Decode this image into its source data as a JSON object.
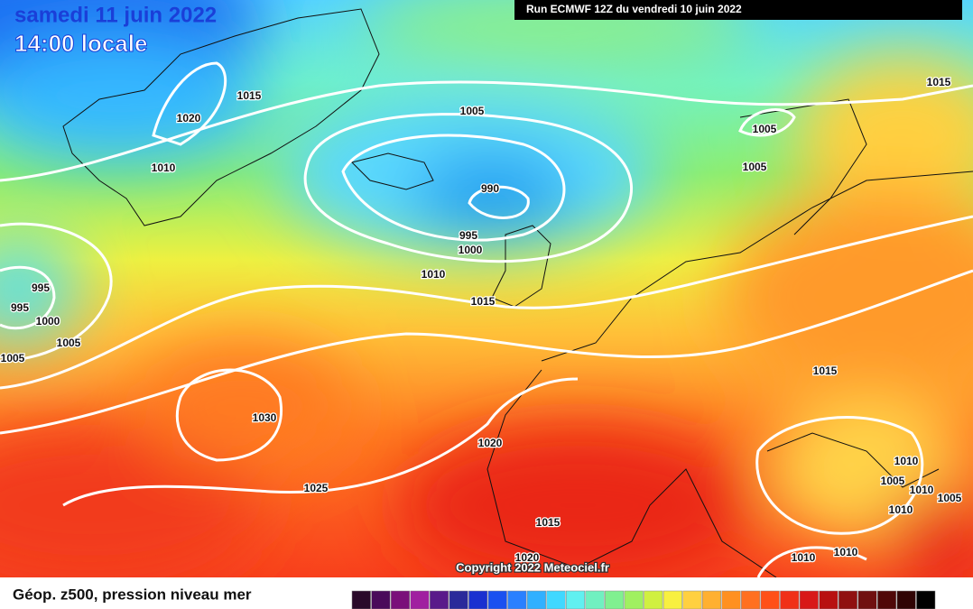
{
  "header": {
    "date": "samedi 11 juin 2022",
    "time": "14:00 locale",
    "run": "Run ECMWF 12Z du vendredi 10 juin 2022"
  },
  "isobar_labels": [
    "1015",
    "1020",
    "1010",
    "1005",
    "990",
    "995",
    "1000",
    "1010",
    "1015",
    "995",
    "995",
    "1000",
    "1005",
    "1005",
    "1030",
    "1025",
    "1020",
    "1015",
    "1020",
    "1005",
    "1005",
    "1015",
    "1015",
    "1010",
    "1005",
    "1010",
    "1005",
    "1010",
    "1010",
    "1010"
  ],
  "copyright": "Copyright 2022 Meteociel.fr",
  "legend": {
    "title": "Géop. z500, pression niveau mer"
  }
}
